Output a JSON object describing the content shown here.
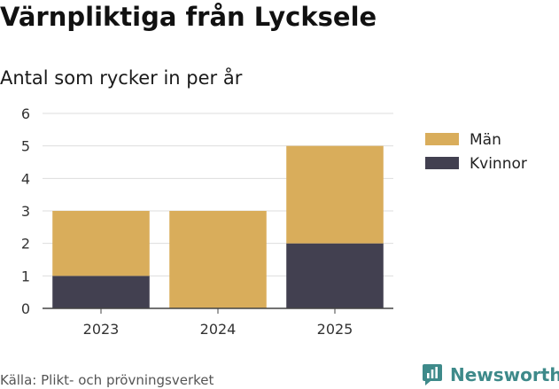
{
  "header": {
    "title": "Värnpliktiga från Lycksele",
    "subtitle": "Antal som rycker in per år"
  },
  "footer": {
    "source": "Källa: Plikt- och prövningsverket",
    "brand": "Newsworthy"
  },
  "colors": {
    "man": "#d9ad5b",
    "kvinnor": "#424050",
    "grid": "#dddddd",
    "brand": "#3e8a8a"
  },
  "chart_data": {
    "type": "bar",
    "stacked": true,
    "title": "Värnpliktiga från Lycksele",
    "subtitle": "Antal som rycker in per år",
    "xlabel": "",
    "ylabel": "",
    "categories": [
      "2023",
      "2024",
      "2025"
    ],
    "series": [
      {
        "name": "Kvinnor",
        "values": [
          1,
          0,
          2
        ],
        "color": "#424050"
      },
      {
        "name": "Män",
        "values": [
          2,
          3,
          3
        ],
        "color": "#d9ad5b"
      }
    ],
    "legend": [
      "Män",
      "Kvinnor"
    ],
    "ylim": [
      0,
      6
    ],
    "yticks": [
      "0",
      "1",
      "2",
      "3",
      "4",
      "5",
      "6"
    ],
    "grid": true,
    "legend_position": "right"
  }
}
